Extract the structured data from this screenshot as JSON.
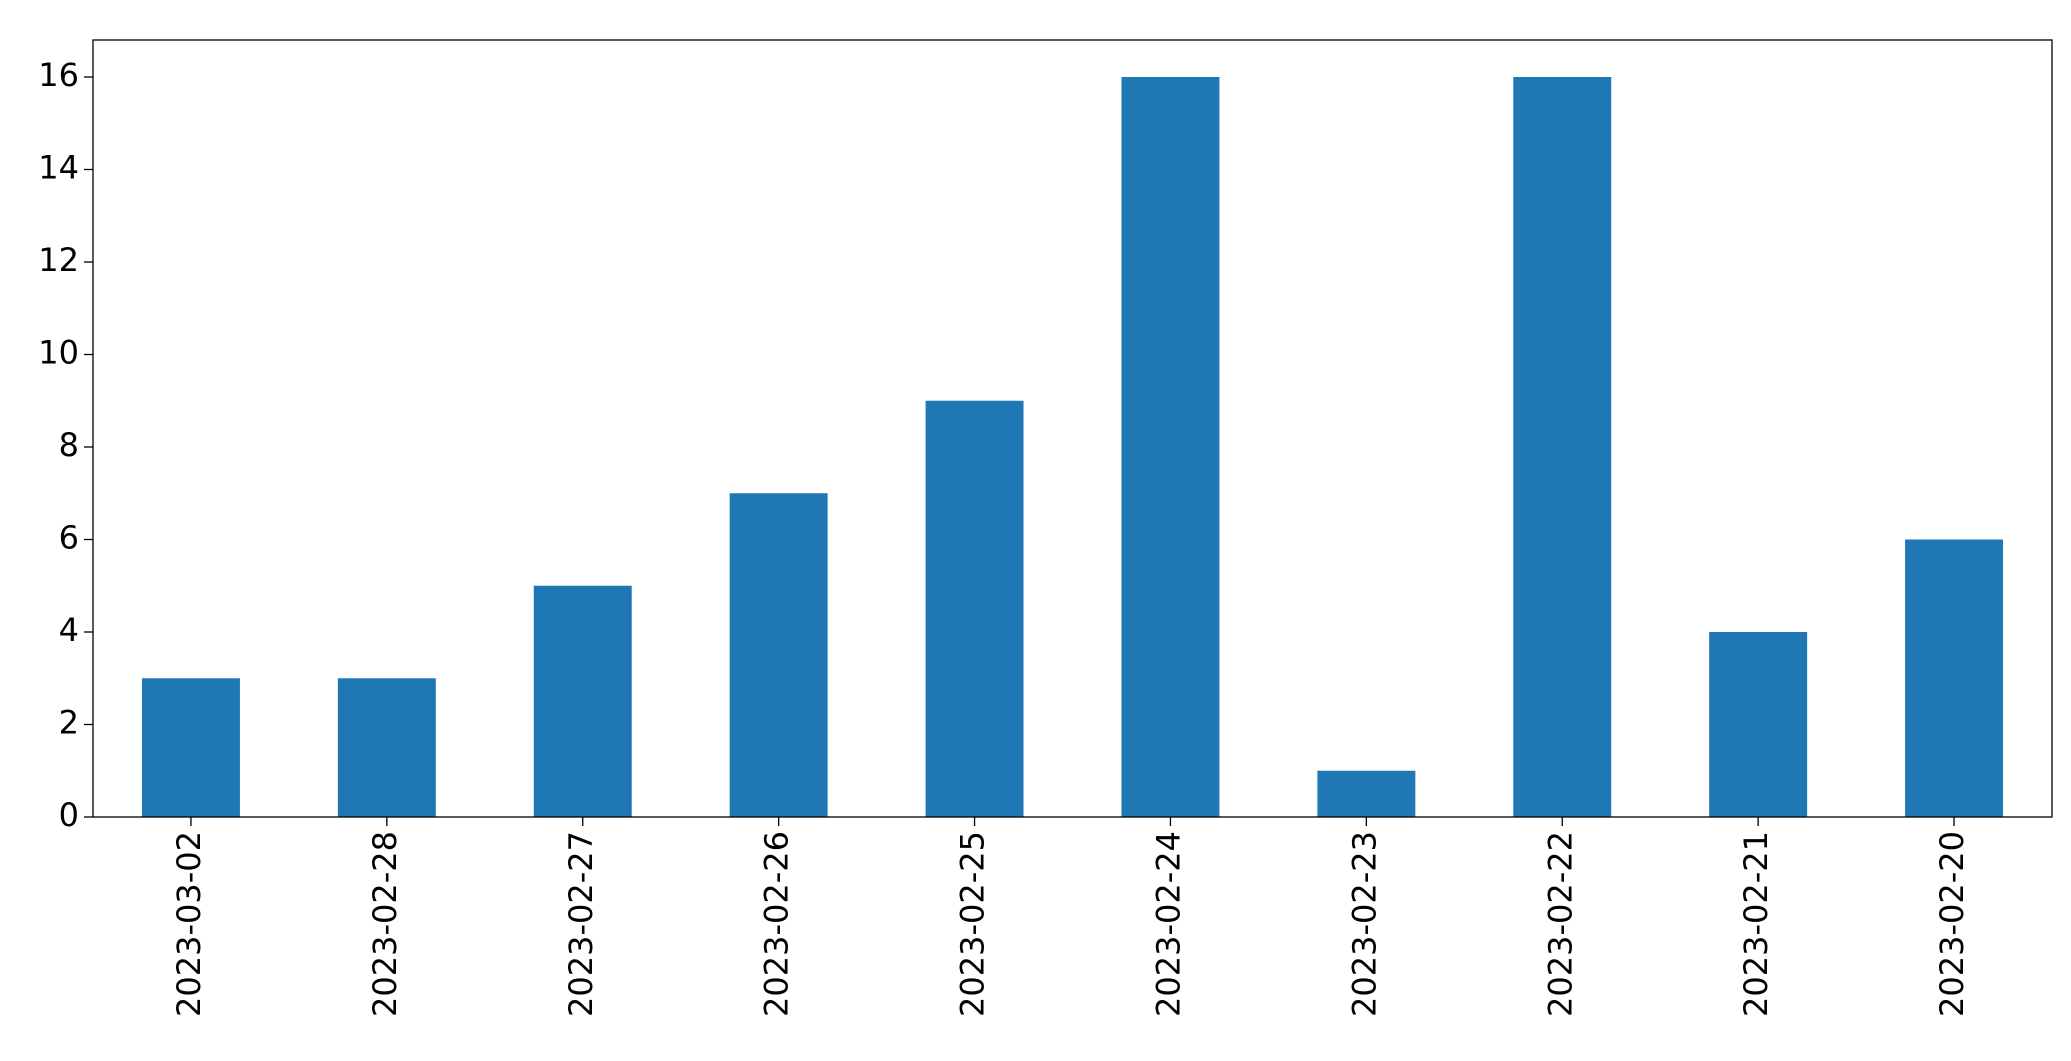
{
  "chart_data": {
    "type": "bar",
    "categories": [
      "2023-03-02",
      "2023-02-28",
      "2023-02-27",
      "2023-02-26",
      "2023-02-25",
      "2023-02-24",
      "2023-02-23",
      "2023-02-22",
      "2023-02-21",
      "2023-02-20"
    ],
    "values": [
      3,
      3,
      5,
      7,
      9,
      16,
      1,
      16,
      4,
      6
    ],
    "color": "#1f77b4",
    "ylim": [
      0,
      16.8
    ],
    "yticks": [
      0,
      2,
      4,
      6,
      8,
      10,
      12,
      14,
      16
    ],
    "grid": false
  }
}
